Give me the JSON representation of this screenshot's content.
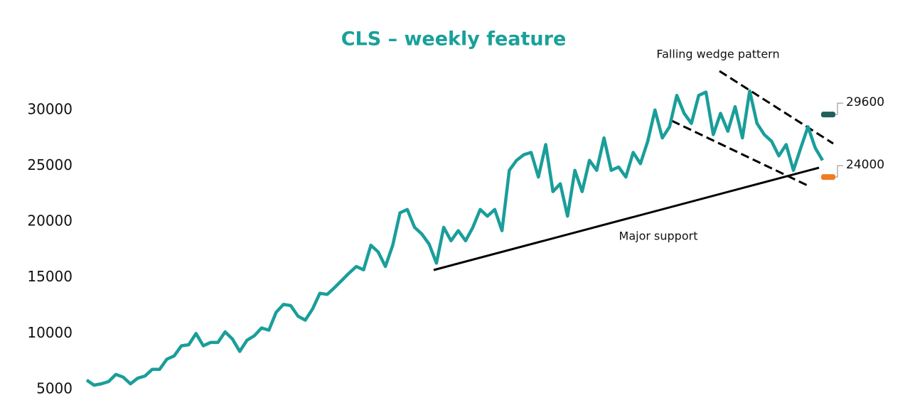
{
  "chart_data": {
    "type": "line",
    "title": "CLS – weekly feature",
    "values": [
      5830,
      5380,
      5500,
      5700,
      6340,
      6100,
      5500,
      6000,
      6200,
      6800,
      6800,
      7700,
      8000,
      8900,
      9000,
      10000,
      8900,
      9200,
      9200,
      10150,
      9500,
      8400,
      9400,
      9800,
      10500,
      10300,
      11900,
      12600,
      12500,
      11550,
      11200,
      12200,
      13600,
      13500,
      14100,
      14750,
      15400,
      16000,
      15700,
      17900,
      17300,
      16000,
      17900,
      20800,
      21100,
      19500,
      18900,
      18000,
      16300,
      19500,
      18300,
      19200,
      18300,
      19500,
      21100,
      20500,
      21100,
      19200,
      24600,
      25500,
      26000,
      26200,
      24000,
      26900,
      22700,
      23400,
      20500,
      24600,
      22700,
      25500,
      24600,
      27500,
      24600,
      24900,
      24000,
      26200,
      25200,
      27200,
      30000,
      27500,
      28500,
      31300,
      29700,
      28800,
      31300,
      31600,
      27800,
      29700,
      28100,
      30300,
      27500,
      31700,
      28800,
      27800,
      27200,
      25900,
      26900,
      24600,
      26600,
      28500,
      26600,
      25500
    ],
    "color": "#1a9e9a",
    "ylim": [
      4000,
      33000
    ],
    "yticks": [
      5000,
      10000,
      15000,
      20000,
      25000,
      30000
    ],
    "markers": [
      {
        "value": 29600,
        "color": "#1f5f5c"
      },
      {
        "value": 24000,
        "color": "#f07c22"
      }
    ],
    "annotations": [
      "Falling wedge pattern",
      "Major support"
    ]
  }
}
